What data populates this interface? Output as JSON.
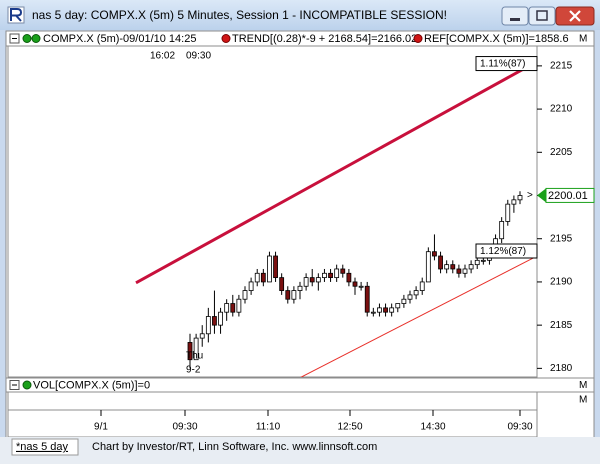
{
  "window": {
    "title": "nas 5 day: COMPX.X (5m) 5 Minutes, Session 1 - INCOMPATIBLE SESSION!"
  },
  "legend": {
    "items": [
      "COMPX.X (5m)-09/01/10 14:25",
      "TREND[(0.28)*-9 + 2168.54]=2166.02",
      "REF[COMPX.X (5m)]=1858.6"
    ]
  },
  "time_info": [
    "16:02",
    "09:30"
  ],
  "pane_button": "M",
  "chart_data": {
    "type": "candlestick",
    "ylim": [
      2179,
      2217.3
    ],
    "yticks": [
      2180,
      2185,
      2190,
      2195,
      2200,
      2205,
      2210,
      2215
    ],
    "xticks": [
      "9/1",
      "09:30",
      "11:10",
      "12:50",
      "14:30",
      "09:30"
    ],
    "last_price": 2200.01,
    "annotations": [
      "1.11%(87)",
      "1.12%(87)"
    ],
    "session_label": [
      "Thu",
      "9-2"
    ],
    "trend_lines": [
      {
        "color": "#c8103c",
        "start": 2189.9,
        "end": 2215.5
      },
      {
        "color": "#e8302a",
        "start": 2178.8,
        "end": 2193.0
      }
    ],
    "up_color": "#ffffff",
    "down_color": "#7a1010",
    "candles": [
      [
        2183,
        2184,
        2180,
        2181
      ],
      [
        2181,
        2184,
        2181,
        2183.5
      ],
      [
        2183.5,
        2185,
        2182.5,
        2184
      ],
      [
        2184,
        2187,
        2183,
        2186
      ],
      [
        2186,
        2189,
        2184,
        2185
      ],
      [
        2185,
        2187,
        2184,
        2186.5
      ],
      [
        2186.5,
        2188,
        2185.5,
        2187.5
      ],
      [
        2187.5,
        2188.5,
        2186,
        2186.5
      ],
      [
        2186.5,
        2188.5,
        2186,
        2188
      ],
      [
        2188,
        2189.5,
        2187.5,
        2189
      ],
      [
        2189,
        2190.5,
        2188.5,
        2190
      ],
      [
        2190,
        2191.5,
        2189.5,
        2191
      ],
      [
        2191,
        2191.5,
        2189.5,
        2190
      ],
      [
        2190,
        2193.5,
        2190,
        2193
      ],
      [
        2193,
        2193.5,
        2190,
        2190.5
      ],
      [
        2190.5,
        2191,
        2188.5,
        2189
      ],
      [
        2189,
        2189.5,
        2187.5,
        2188
      ],
      [
        2188,
        2189.5,
        2187.5,
        2189
      ],
      [
        2189,
        2190,
        2188,
        2189.5
      ],
      [
        2189.5,
        2191,
        2189,
        2190.5
      ],
      [
        2190.5,
        2191.5,
        2189.5,
        2190
      ],
      [
        2190,
        2191,
        2189,
        2190.5
      ],
      [
        2190.5,
        2191.5,
        2190,
        2191
      ],
      [
        2191,
        2191.5,
        2190,
        2190.5
      ],
      [
        2190.5,
        2192,
        2190,
        2191.5
      ],
      [
        2191.5,
        2192,
        2190.5,
        2191
      ],
      [
        2191,
        2191.5,
        2189.5,
        2190
      ],
      [
        2190,
        2190.5,
        2188.5,
        2189.5
      ],
      [
        2189.5,
        2190,
        2189,
        2189.5
      ],
      [
        2189.5,
        2190,
        2186,
        2186.5
      ],
      [
        2186.5,
        2187,
        2186,
        2186.5
      ],
      [
        2186.5,
        2187.5,
        2186,
        2187
      ],
      [
        2187,
        2187.5,
        2186,
        2186.5
      ],
      [
        2186.5,
        2187.5,
        2186,
        2187
      ],
      [
        2187,
        2187.5,
        2186.5,
        2187.5
      ],
      [
        2187.5,
        2188.5,
        2187,
        2188
      ],
      [
        2188,
        2189,
        2187.5,
        2188.5
      ],
      [
        2188.5,
        2189.5,
        2188,
        2189
      ],
      [
        2189,
        2190.5,
        2188.5,
        2190
      ],
      [
        2190,
        2194,
        2190,
        2193.5
      ],
      [
        2193.5,
        2195.5,
        2192.5,
        2193
      ],
      [
        2193,
        2193.5,
        2191,
        2191.5
      ],
      [
        2191.5,
        2192.5,
        2191,
        2192
      ],
      [
        2192,
        2192.5,
        2191,
        2191.5
      ],
      [
        2191.5,
        2192,
        2190.5,
        2191
      ],
      [
        2191,
        2192,
        2190.5,
        2191.5
      ],
      [
        2191.5,
        2192.5,
        2191,
        2192
      ],
      [
        2192,
        2193,
        2191.5,
        2192.5
      ],
      [
        2192.5,
        2193,
        2192,
        2192.5
      ],
      [
        2192.5,
        2194,
        2192,
        2193.5
      ],
      [
        2193.5,
        2195.5,
        2193,
        2195
      ],
      [
        2195,
        2197.5,
        2194.5,
        2197
      ],
      [
        2197,
        2199.5,
        2196.5,
        2199
      ],
      [
        2199,
        2200,
        2198,
        2199.5
      ],
      [
        2199.5,
        2200.5,
        2199,
        2200
      ]
    ]
  },
  "volume_pane": {
    "label": "VOL[COMPX.X (5m)]=0"
  },
  "footer": {
    "tab": "*nas 5 day",
    "credit": "Chart by Investor/RT, Linn Software, Inc. www.linnsoft.com"
  }
}
